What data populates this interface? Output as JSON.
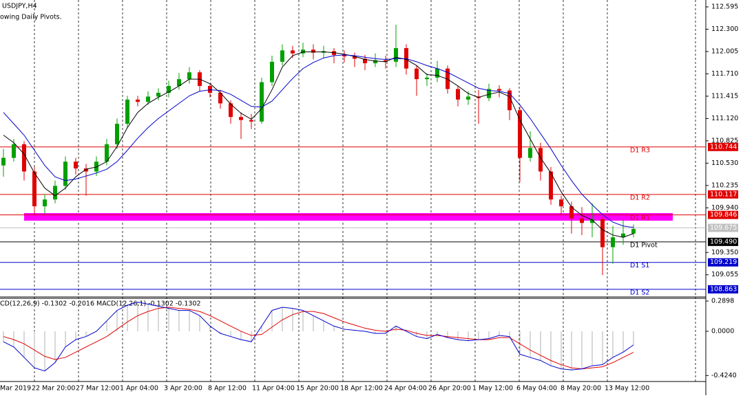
{
  "chart_data": {
    "type": "candlestick",
    "title": "USDJPY,H4",
    "subtitle": "owing Daily Pivots.",
    "up_color": "#00a000",
    "down_color": "#e00000",
    "ylim": [
      108.762,
      112.686
    ],
    "yticks": [
      {
        "value": 112.595,
        "label": "112.595"
      },
      {
        "value": 112.3,
        "label": "112.300"
      },
      {
        "value": 112.005,
        "label": "112.005"
      },
      {
        "value": 111.71,
        "label": "111.710"
      },
      {
        "value": 111.415,
        "label": "111.415"
      },
      {
        "value": 111.12,
        "label": "111.120"
      },
      {
        "value": 110.825,
        "label": "110.825"
      },
      {
        "value": 110.53,
        "label": "110.530"
      },
      {
        "value": 110.235,
        "label": "110.235"
      },
      {
        "value": 109.94,
        "label": "109.940"
      },
      {
        "value": 109.35,
        "label": "109.350"
      },
      {
        "value": 109.055,
        "label": "109.055"
      }
    ],
    "x_axis_labels": [
      "Mar 2019",
      "22 Mar 20:00",
      "27 Mar 12:00",
      "1 Apr 04:00",
      "3 Apr 20:00",
      "8 Apr 12:00",
      "11 Apr 04:00",
      "15 Apr 20:00",
      "18 Apr 12:00",
      "24 Apr 04:00",
      "26 Apr 20:00",
      "1 May 12:00",
      "6 May 04:00",
      "8 May 20:00",
      "13 May 12:00"
    ],
    "open": [
      110.5,
      110.6,
      110.78,
      110.42,
      109.96,
      110.05,
      110.23,
      110.55,
      110.46,
      110.42,
      110.55,
      110.78,
      111.05,
      111.37,
      111.34,
      111.41,
      111.46,
      111.55,
      111.64,
      111.73,
      111.55,
      111.46,
      111.32,
      111.14,
      111.1,
      111.08,
      111.6,
      111.87,
      112.02,
      111.98,
      112.03,
      111.99,
      112.01,
      111.96,
      111.94,
      111.91,
      111.85,
      111.89,
      111.87,
      112.05,
      111.78,
      111.64,
      111.66,
      111.78,
      111.51,
      111.37,
      111.41,
      111.39,
      111.51,
      111.49,
      111.23,
      110.6,
      110.73,
      110.42,
      110.05,
      109.96,
      109.8,
      109.74,
      109.79,
      109.42,
      109.55,
      109.6
    ],
    "high": [
      110.72,
      110.85,
      110.82,
      110.48,
      110.12,
      110.3,
      110.62,
      110.6,
      110.52,
      110.62,
      110.85,
      111.12,
      111.42,
      111.42,
      111.48,
      111.52,
      111.62,
      111.72,
      111.8,
      111.76,
      111.58,
      111.5,
      111.36,
      111.2,
      111.18,
      111.66,
      111.95,
      112.1,
      112.08,
      112.12,
      112.1,
      112.08,
      112.05,
      112.02,
      111.99,
      111.96,
      111.98,
      111.95,
      112.36,
      112.1,
      111.82,
      111.72,
      111.88,
      111.82,
      111.55,
      111.48,
      111.5,
      111.58,
      111.56,
      111.52,
      111.28,
      110.95,
      110.8,
      110.48,
      110.1,
      110.02,
      109.95,
      110.0,
      109.82,
      109.7,
      109.78,
      109.72
    ],
    "low": [
      110.35,
      110.55,
      110.3,
      109.85,
      109.86,
      110.0,
      110.18,
      110.38,
      110.1,
      110.36,
      110.5,
      110.72,
      111.0,
      111.28,
      111.3,
      111.36,
      111.4,
      111.5,
      111.58,
      111.48,
      111.4,
      111.25,
      111.05,
      110.85,
      110.98,
      111.05,
      111.55,
      111.82,
      111.92,
      111.93,
      111.9,
      111.92,
      111.85,
      111.86,
      111.8,
      111.76,
      111.8,
      111.78,
      111.8,
      111.7,
      111.42,
      111.55,
      111.6,
      111.45,
      111.28,
      111.3,
      111.05,
      111.35,
      111.4,
      111.1,
      110.28,
      110.55,
      110.3,
      109.98,
      109.85,
      109.6,
      109.58,
      109.55,
      109.05,
      109.2,
      109.45,
      109.55
    ],
    "close": [
      110.6,
      110.78,
      110.42,
      109.96,
      110.05,
      110.23,
      110.55,
      110.46,
      110.42,
      110.55,
      110.78,
      111.05,
      111.37,
      111.34,
      111.41,
      111.46,
      111.55,
      111.64,
      111.73,
      111.55,
      111.46,
      111.32,
      111.14,
      111.1,
      111.08,
      111.6,
      111.87,
      112.02,
      111.98,
      112.03,
      111.99,
      112.01,
      111.96,
      111.94,
      111.91,
      111.85,
      111.89,
      111.87,
      112.05,
      111.78,
      111.64,
      111.66,
      111.78,
      111.51,
      111.37,
      111.41,
      111.39,
      111.51,
      111.49,
      111.23,
      110.6,
      110.73,
      110.42,
      110.05,
      109.96,
      109.8,
      109.74,
      109.79,
      109.42,
      109.55,
      109.6,
      109.66
    ],
    "series": [
      {
        "color": "#000000",
        "values": [
          110.9,
          110.8,
          110.65,
          110.4,
          110.2,
          110.1,
          110.2,
          110.35,
          110.45,
          110.48,
          110.55,
          110.75,
          111.0,
          111.2,
          111.32,
          111.4,
          111.47,
          111.55,
          111.64,
          111.64,
          111.58,
          111.46,
          111.31,
          111.19,
          111.11,
          111.25,
          111.5,
          111.8,
          111.95,
          112.0,
          112.0,
          112.0,
          111.99,
          111.97,
          111.94,
          111.9,
          111.88,
          111.87,
          111.93,
          111.9,
          111.82,
          111.7,
          111.69,
          111.64,
          111.55,
          111.45,
          111.4,
          111.44,
          111.47,
          111.41,
          111.1,
          110.85,
          110.6,
          110.4,
          110.15,
          109.95,
          109.84,
          109.78,
          109.65,
          109.58,
          109.55,
          109.6
        ]
      },
      {
        "color": "#0000cc",
        "values": [
          111.2,
          111.05,
          110.9,
          110.7,
          110.5,
          110.35,
          110.3,
          110.32,
          110.36,
          110.4,
          110.45,
          110.55,
          110.7,
          110.86,
          111.0,
          111.12,
          111.22,
          111.32,
          111.42,
          111.48,
          111.5,
          111.49,
          111.44,
          111.36,
          111.28,
          111.27,
          111.35,
          111.5,
          111.65,
          111.78,
          111.86,
          111.92,
          111.95,
          111.96,
          111.95,
          111.93,
          111.91,
          111.9,
          111.91,
          111.91,
          111.87,
          111.82,
          111.78,
          111.73,
          111.66,
          111.59,
          111.52,
          111.49,
          111.48,
          111.45,
          111.3,
          111.12,
          110.92,
          110.72,
          110.5,
          110.3,
          110.12,
          109.98,
          109.85,
          109.75,
          109.7,
          109.68
        ]
      }
    ],
    "levels": [
      {
        "name": "D1 R3",
        "value": 110.744,
        "value_label": "110.744",
        "color": "#e00000"
      },
      {
        "name": "D1 R2",
        "value": 110.117,
        "value_label": "110.117",
        "color": "#e00000"
      },
      {
        "name": "D1 R1",
        "value": 109.846,
        "value_label": "109.846",
        "color": "#e00000"
      },
      {
        "name": "D1 Pivot",
        "value": 109.49,
        "value_label": "109.490",
        "color": "#000000"
      },
      {
        "name": "D1 S1",
        "value": 109.219,
        "value_label": "109.219",
        "color": "#0000cc"
      },
      {
        "name": "D1 S2",
        "value": 108.863,
        "value_label": "108.863",
        "color": "#0000cc"
      }
    ],
    "last_price": {
      "value": 109.675,
      "label": "109.675",
      "color": "#c0c0c0"
    },
    "zone": {
      "from": 109.77,
      "to": 109.87,
      "color": "#ff00ff"
    },
    "indicator": {
      "title": "CD(12,26,9) -0.1302 -0.2016 MACD(12,26,1) -0.1302 -0.1302",
      "ylim": [
        -0.481,
        0.316
      ],
      "yticks": [
        0.2898,
        {
          "value": 0,
          "label": "0.0000"
        },
        {
          "value": -0.424,
          "label": "-0.4240"
        }
      ],
      "histogram_color": "#b0b0b0",
      "line_color": "#0000cc",
      "signal_color": "#e00000",
      "macd": [
        -0.1,
        -0.15,
        -0.25,
        -0.35,
        -0.38,
        -0.3,
        -0.15,
        -0.08,
        -0.05,
        0.0,
        0.1,
        0.2,
        0.25,
        0.28,
        0.26,
        0.24,
        0.22,
        0.2,
        0.2,
        0.15,
        0.05,
        -0.02,
        -0.05,
        -0.08,
        -0.1,
        0.05,
        0.2,
        0.23,
        0.22,
        0.2,
        0.15,
        0.1,
        0.05,
        0.02,
        0.01,
        0.0,
        -0.02,
        -0.02,
        0.05,
        0.0,
        -0.05,
        -0.07,
        -0.03,
        -0.06,
        -0.08,
        -0.09,
        -0.08,
        -0.07,
        -0.04,
        -0.05,
        -0.22,
        -0.25,
        -0.28,
        -0.33,
        -0.36,
        -0.37,
        -0.36,
        -0.33,
        -0.32,
        -0.25,
        -0.2,
        -0.1302
      ],
      "signal": [
        -0.05,
        -0.08,
        -0.12,
        -0.18,
        -0.24,
        -0.27,
        -0.25,
        -0.2,
        -0.15,
        -0.1,
        -0.05,
        0.02,
        0.09,
        0.15,
        0.19,
        0.22,
        0.23,
        0.22,
        0.21,
        0.19,
        0.15,
        0.1,
        0.05,
        0.0,
        -0.04,
        -0.03,
        0.04,
        0.11,
        0.16,
        0.19,
        0.19,
        0.17,
        0.13,
        0.09,
        0.06,
        0.03,
        0.01,
        0.0,
        0.02,
        0.01,
        -0.02,
        -0.04,
        -0.04,
        -0.05,
        -0.06,
        -0.07,
        -0.08,
        -0.08,
        -0.06,
        -0.06,
        -0.12,
        -0.18,
        -0.23,
        -0.28,
        -0.32,
        -0.35,
        -0.36,
        -0.35,
        -0.34,
        -0.3,
        -0.25,
        -0.2016
      ]
    }
  }
}
